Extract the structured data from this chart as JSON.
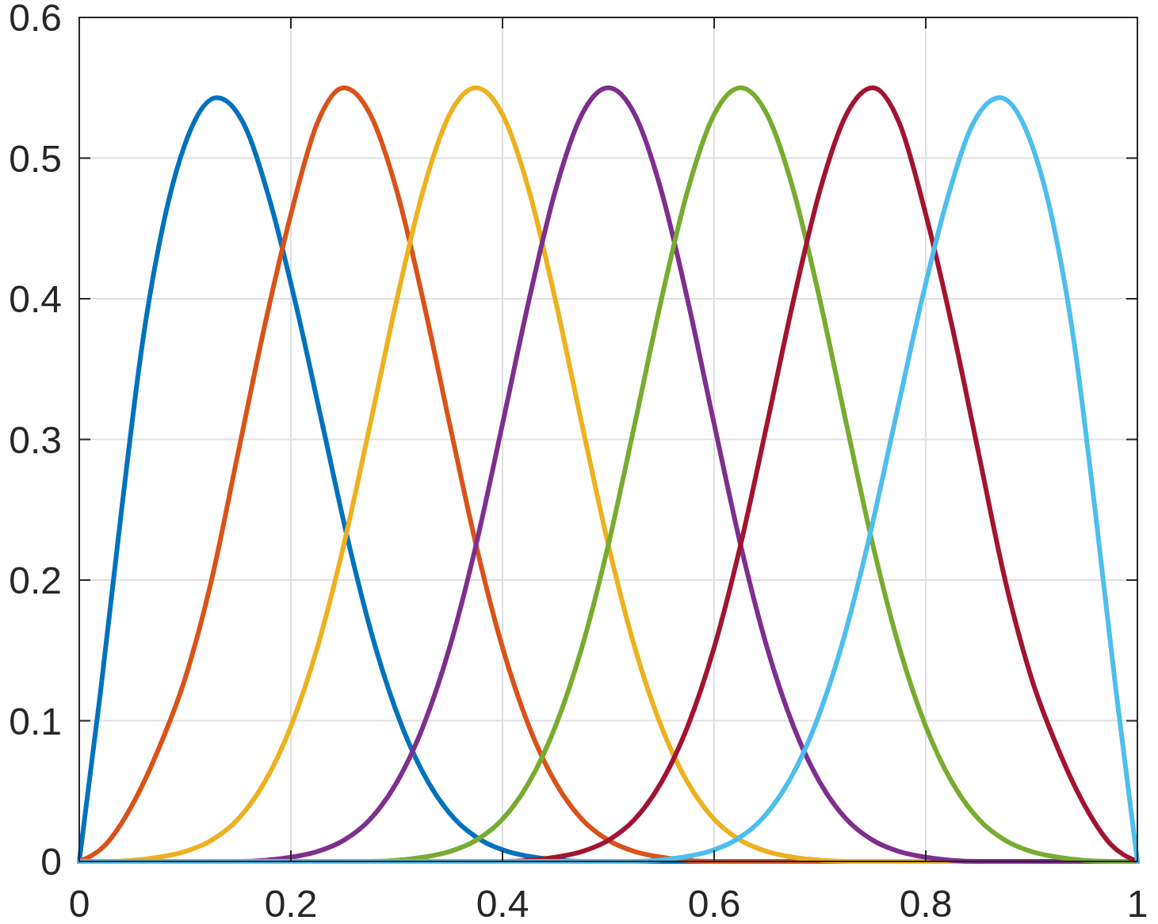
{
  "chart_data": {
    "type": "line",
    "xlim": [
      0,
      1
    ],
    "ylim": [
      0,
      0.6
    ],
    "xticks": [
      0,
      0.2,
      0.4,
      0.6,
      0.8,
      1
    ],
    "yticks": [
      0,
      0.1,
      0.2,
      0.3,
      0.4,
      0.5,
      0.6
    ],
    "grid": true,
    "line_style": "solid",
    "marker": "none",
    "series": [
      {
        "color": "#0072bd",
        "x": [
          0,
          0.02,
          0.04,
          0.06,
          0.08,
          0.1,
          0.13,
          0.155,
          0.18,
          0.205,
          0.23,
          0.255,
          0.28,
          0.305,
          0.33,
          0.355,
          0.38,
          0.405,
          0.43,
          0.48,
          1
        ],
        "values": [
          0,
          0.12,
          0.25,
          0.37,
          0.455,
          0.51,
          0.543,
          0.525,
          0.47,
          0.395,
          0.31,
          0.225,
          0.152,
          0.096,
          0.056,
          0.03,
          0.015,
          0.007,
          0.003,
          0,
          0
        ]
      },
      {
        "color": "#d95319",
        "x": [
          0,
          0.025,
          0.05,
          0.075,
          0.1,
          0.125,
          0.15,
          0.175,
          0.2,
          0.225,
          0.25,
          0.275,
          0.3,
          0.325,
          0.35,
          0.375,
          0.4,
          0.425,
          0.45,
          0.475,
          0.5,
          0.525,
          0.55,
          0.6,
          1
        ],
        "values": [
          0,
          0.012,
          0.04,
          0.08,
          0.13,
          0.2,
          0.29,
          0.38,
          0.46,
          0.525,
          0.55,
          0.531,
          0.477,
          0.399,
          0.311,
          0.225,
          0.152,
          0.096,
          0.056,
          0.03,
          0.015,
          0.007,
          0.003,
          0,
          0
        ]
      },
      {
        "color": "#edb120",
        "x": [
          0,
          0.025,
          0.075,
          0.1,
          0.125,
          0.15,
          0.175,
          0.2,
          0.225,
          0.25,
          0.275,
          0.3,
          0.325,
          0.35,
          0.375,
          0.4,
          0.425,
          0.45,
          0.475,
          0.5,
          0.525,
          0.55,
          0.575,
          0.6,
          0.625,
          0.65,
          0.675,
          0.725,
          1
        ],
        "values": [
          0,
          0,
          0.003,
          0.007,
          0.015,
          0.03,
          0.056,
          0.096,
          0.152,
          0.225,
          0.311,
          0.399,
          0.477,
          0.531,
          0.55,
          0.531,
          0.477,
          0.399,
          0.311,
          0.225,
          0.152,
          0.096,
          0.056,
          0.03,
          0.015,
          0.007,
          0.003,
          0,
          0
        ]
      },
      {
        "color": "#7e2f8e",
        "x": [
          0,
          0.15,
          0.2,
          0.225,
          0.25,
          0.275,
          0.3,
          0.325,
          0.35,
          0.375,
          0.4,
          0.425,
          0.45,
          0.475,
          0.5,
          0.525,
          0.55,
          0.575,
          0.6,
          0.625,
          0.65,
          0.675,
          0.7,
          0.725,
          0.75,
          0.775,
          0.8,
          0.85,
          1
        ],
        "values": [
          0,
          0,
          0.003,
          0.007,
          0.015,
          0.03,
          0.056,
          0.096,
          0.152,
          0.225,
          0.311,
          0.399,
          0.477,
          0.531,
          0.55,
          0.531,
          0.477,
          0.399,
          0.311,
          0.225,
          0.152,
          0.096,
          0.056,
          0.03,
          0.015,
          0.007,
          0.003,
          0,
          0
        ]
      },
      {
        "color": "#77ac30",
        "x": [
          0,
          0.275,
          0.325,
          0.35,
          0.375,
          0.4,
          0.425,
          0.45,
          0.475,
          0.5,
          0.525,
          0.55,
          0.575,
          0.6,
          0.625,
          0.65,
          0.675,
          0.7,
          0.725,
          0.75,
          0.775,
          0.8,
          0.825,
          0.85,
          0.875,
          0.9,
          0.925,
          0.975,
          1
        ],
        "values": [
          0,
          0,
          0.003,
          0.007,
          0.015,
          0.03,
          0.056,
          0.096,
          0.152,
          0.225,
          0.311,
          0.399,
          0.477,
          0.531,
          0.55,
          0.531,
          0.477,
          0.399,
          0.311,
          0.225,
          0.152,
          0.096,
          0.056,
          0.03,
          0.015,
          0.007,
          0.003,
          0,
          0
        ]
      },
      {
        "color": "#a2142f",
        "x": [
          0,
          0.4,
          0.45,
          0.475,
          0.5,
          0.525,
          0.55,
          0.575,
          0.6,
          0.625,
          0.65,
          0.675,
          0.7,
          0.725,
          0.75,
          0.775,
          0.8,
          0.825,
          0.85,
          0.875,
          0.9,
          0.925,
          0.95,
          0.975,
          1
        ],
        "values": [
          0,
          0,
          0.003,
          0.007,
          0.015,
          0.03,
          0.056,
          0.096,
          0.152,
          0.225,
          0.311,
          0.399,
          0.477,
          0.531,
          0.55,
          0.525,
          0.46,
          0.38,
          0.29,
          0.2,
          0.13,
          0.08,
          0.04,
          0.012,
          0
        ]
      },
      {
        "color": "#4dbeee",
        "x": [
          0,
          0.52,
          0.57,
          0.595,
          0.62,
          0.645,
          0.67,
          0.695,
          0.72,
          0.745,
          0.77,
          0.795,
          0.82,
          0.845,
          0.87,
          0.9,
          0.92,
          0.94,
          0.96,
          0.98,
          1
        ],
        "values": [
          0,
          0,
          0.003,
          0.007,
          0.015,
          0.03,
          0.056,
          0.096,
          0.152,
          0.225,
          0.31,
          0.395,
          0.47,
          0.525,
          0.543,
          0.51,
          0.455,
          0.37,
          0.25,
          0.12,
          0
        ]
      }
    ]
  }
}
